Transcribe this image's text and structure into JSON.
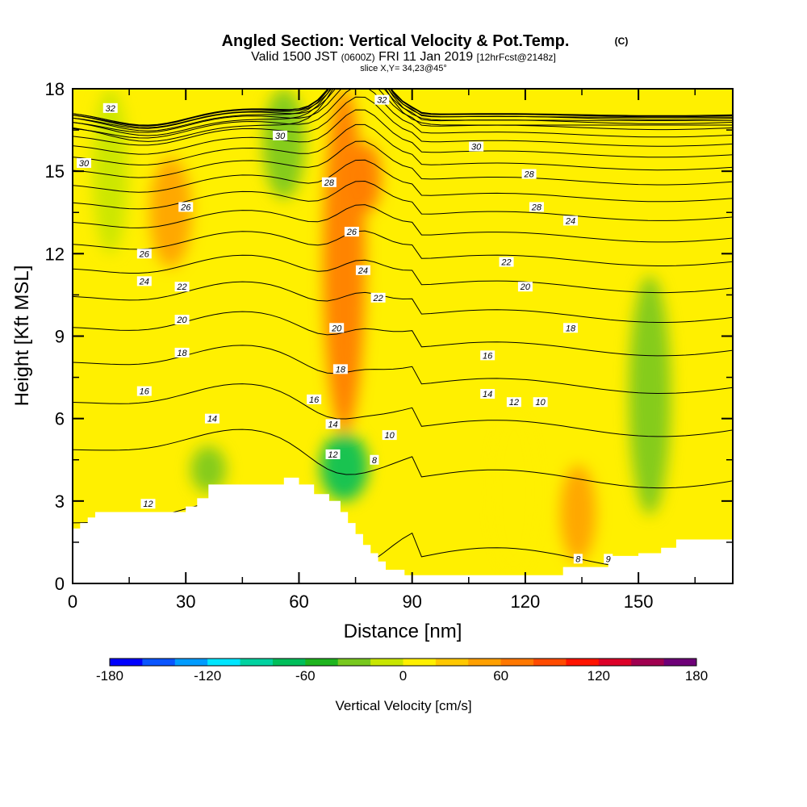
{
  "header": {
    "title": "Angled Section: Vertical Velocity & Pot.Temp.",
    "title_units": "(C)",
    "valid_prefix": "Valid 1500 JST",
    "valid_utc": "(0600Z)",
    "valid_date": "FRI 11 Jan 2019",
    "forecast": "[12hrFcst@2148z]",
    "slice": "slice X,Y= 34,23@45°"
  },
  "chart_data": {
    "type": "heatmap",
    "xlabel": "Distance [nm]",
    "ylabel": "Height [Kft MSL]",
    "xlim": [
      0,
      175
    ],
    "ylim": [
      0,
      18
    ],
    "x_ticks": [
      0,
      30,
      60,
      90,
      120,
      150
    ],
    "y_ticks": [
      0,
      3,
      6,
      9,
      12,
      15,
      18
    ],
    "grid": false,
    "colorbar": {
      "label": "Vertical Velocity [cm/s]",
      "range": [
        -180,
        180
      ],
      "tick_values": [
        -180,
        -120,
        -60,
        0,
        60,
        120,
        180
      ],
      "colors": [
        "#0000ff",
        "#0a55ff",
        "#009cff",
        "#00e6ff",
        "#00d2a0",
        "#00be5a",
        "#1eb41e",
        "#78c81e",
        "#c8e600",
        "#fff000",
        "#ffc800",
        "#ffa000",
        "#ff7800",
        "#ff4b00",
        "#ff1400",
        "#dc0028",
        "#a00050",
        "#6e0078"
      ]
    },
    "isentropes_C": [
      8,
      9,
      10,
      11,
      12,
      13,
      14,
      15,
      16,
      17,
      18,
      19,
      20,
      21,
      22,
      23,
      24,
      25,
      26,
      27,
      28,
      29,
      30,
      31,
      32
    ],
    "isentrope_labels": [
      {
        "x": 10,
        "y": 17.3,
        "text": "32"
      },
      {
        "x": 82,
        "y": 17.6,
        "text": "32"
      },
      {
        "x": 3,
        "y": 15.3,
        "text": "30"
      },
      {
        "x": 55,
        "y": 16.3,
        "text": "30"
      },
      {
        "x": 107,
        "y": 15.9,
        "text": "30"
      },
      {
        "x": 68,
        "y": 14.6,
        "text": "28"
      },
      {
        "x": 121,
        "y": 14.9,
        "text": "28"
      },
      {
        "x": 123,
        "y": 13.7,
        "text": "28"
      },
      {
        "x": 30,
        "y": 13.7,
        "text": "26"
      },
      {
        "x": 74,
        "y": 12.8,
        "text": "26"
      },
      {
        "x": 132,
        "y": 13.2,
        "text": "24"
      },
      {
        "x": 19,
        "y": 12.0,
        "text": "26"
      },
      {
        "x": 19,
        "y": 11.0,
        "text": "24"
      },
      {
        "x": 77,
        "y": 11.4,
        "text": "24"
      },
      {
        "x": 115,
        "y": 11.7,
        "text": "22"
      },
      {
        "x": 29,
        "y": 10.8,
        "text": "22"
      },
      {
        "x": 81,
        "y": 10.4,
        "text": "22"
      },
      {
        "x": 120,
        "y": 10.8,
        "text": "20"
      },
      {
        "x": 29,
        "y": 9.6,
        "text": "20"
      },
      {
        "x": 70,
        "y": 9.3,
        "text": "20"
      },
      {
        "x": 132,
        "y": 9.3,
        "text": "18"
      },
      {
        "x": 29,
        "y": 8.4,
        "text": "18"
      },
      {
        "x": 71,
        "y": 7.8,
        "text": "18"
      },
      {
        "x": 110,
        "y": 8.3,
        "text": "16"
      },
      {
        "x": 19,
        "y": 7.0,
        "text": "16"
      },
      {
        "x": 64,
        "y": 6.7,
        "text": "16"
      },
      {
        "x": 110,
        "y": 6.9,
        "text": "14"
      },
      {
        "x": 37,
        "y": 6.0,
        "text": "14"
      },
      {
        "x": 69,
        "y": 5.8,
        "text": "14"
      },
      {
        "x": 117,
        "y": 6.6,
        "text": "12"
      },
      {
        "x": 124,
        "y": 6.6,
        "text": "10"
      },
      {
        "x": 84,
        "y": 5.4,
        "text": "10"
      },
      {
        "x": 69,
        "y": 4.7,
        "text": "12"
      },
      {
        "x": 80,
        "y": 4.5,
        "text": "8"
      },
      {
        "x": 20,
        "y": 2.9,
        "text": "12"
      },
      {
        "x": 134,
        "y": 0.9,
        "text": "8"
      },
      {
        "x": 142,
        "y": 0.9,
        "text": "9"
      }
    ],
    "terrain_kft": {
      "x": [
        0,
        2,
        2,
        4,
        4,
        6,
        6,
        10,
        30,
        30,
        33,
        33,
        36,
        36,
        56,
        56,
        60,
        60,
        64,
        64,
        68,
        68,
        71,
        71,
        73,
        73,
        75,
        75,
        77,
        77,
        79,
        79,
        81,
        81,
        83,
        83,
        88,
        88,
        104,
        104,
        130,
        130,
        142,
        142,
        150,
        150,
        156,
        156,
        160,
        160,
        164,
        164,
        175
      ],
      "y": [
        2.0,
        2.0,
        2.2,
        2.2,
        2.4,
        2.4,
        2.6,
        2.6,
        2.6,
        2.8,
        2.8,
        3.1,
        3.1,
        3.6,
        3.6,
        3.85,
        3.85,
        3.6,
        3.6,
        3.25,
        3.25,
        3.0,
        3.0,
        2.6,
        2.6,
        2.2,
        2.2,
        1.8,
        1.8,
        1.4,
        1.4,
        1.1,
        1.1,
        0.8,
        0.8,
        0.5,
        0.5,
        0.3,
        0.3,
        0.3,
        0.3,
        0.6,
        0.6,
        1.0,
        1.0,
        1.1,
        1.1,
        1.3,
        1.3,
        1.6,
        1.6,
        1.6,
        1.6
      ]
    },
    "vertical_velocity_features": [
      {
        "x": 10,
        "y_range": [
          12.0,
          18.0
        ],
        "vv_cm_s": -20
      },
      {
        "x": 56,
        "y_range": [
          14.0,
          18.0
        ],
        "vv_cm_s": -30
      },
      {
        "x": 72,
        "y_range": [
          5.5,
          18.0
        ],
        "vv_cm_s": 60
      },
      {
        "x": 78,
        "y_range": [
          13.5,
          16.0
        ],
        "vv_cm_s": 75
      },
      {
        "x": 26,
        "y_range": [
          11.5,
          15.5
        ],
        "vv_cm_s": 40
      },
      {
        "x": 72,
        "y_range": [
          3.0,
          5.5
        ],
        "vv_cm_s": -70
      },
      {
        "x": 36,
        "y_range": [
          3.3,
          5.0
        ],
        "vv_cm_s": -30
      },
      {
        "x": 153,
        "y_range": [
          2.5,
          11.2
        ],
        "vv_cm_s": -35
      },
      {
        "x": 117,
        "y_range": [
          0.3,
          6.3
        ],
        "vv_cm_s": 10
      },
      {
        "x": 134,
        "y_range": [
          0.8,
          4.3
        ],
        "vv_cm_s": 40
      }
    ]
  }
}
